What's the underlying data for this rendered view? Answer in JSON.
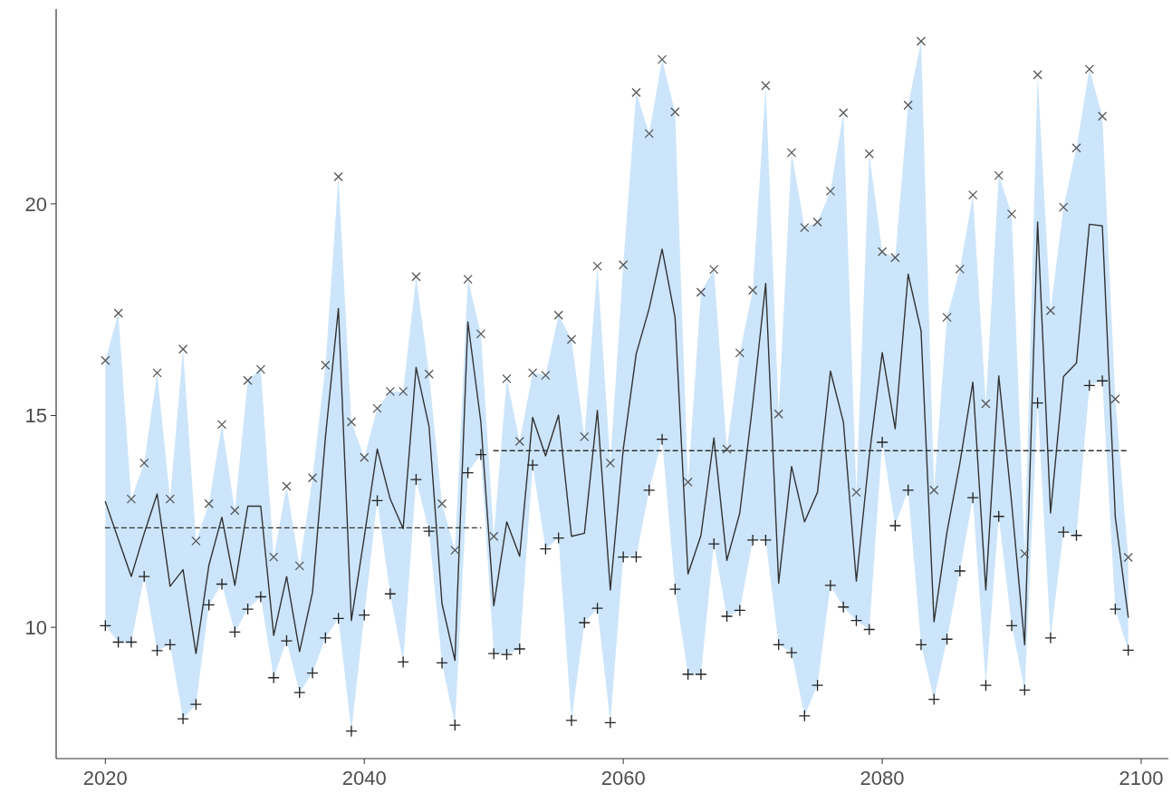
{
  "chart_data": {
    "type": "line",
    "x": [
      2020,
      2021,
      2022,
      2023,
      2024,
      2025,
      2026,
      2027,
      2028,
      2029,
      2030,
      2031,
      2032,
      2033,
      2034,
      2035,
      2036,
      2037,
      2038,
      2039,
      2040,
      2041,
      2042,
      2043,
      2044,
      2045,
      2046,
      2047,
      2048,
      2049,
      2050,
      2051,
      2052,
      2053,
      2054,
      2055,
      2056,
      2057,
      2058,
      2059,
      2060,
      2061,
      2062,
      2063,
      2064,
      2065,
      2066,
      2067,
      2068,
      2069,
      2070,
      2071,
      2072,
      2073,
      2074,
      2075,
      2076,
      2077,
      2078,
      2079,
      2080,
      2081,
      2082,
      2083,
      2084,
      2085,
      2086,
      2087,
      2088,
      2089,
      2090,
      2091,
      2092,
      2093,
      2094,
      2095,
      2096,
      2097,
      2098,
      2099
    ],
    "series": [
      {
        "color": "#333333",
        "line_style": "solid",
        "marker": "none",
        "values": [
          12.97,
          12.08,
          11.2,
          12.22,
          13.15,
          10.97,
          11.36,
          9.38,
          11.47,
          12.6,
          10.99,
          12.86,
          12.86,
          9.81,
          11.2,
          9.43,
          10.83,
          14.5,
          17.53,
          10.16,
          12.14,
          14.21,
          13.03,
          12.33,
          16.14,
          14.74,
          10.56,
          9.22,
          17.21,
          14.85,
          10.51,
          12.49,
          11.68,
          14.96,
          14.05,
          15.01,
          12.15,
          12.22,
          15.12,
          10.88,
          14.21,
          16.46,
          17.53,
          18.93,
          17.32,
          11.26,
          12.17,
          14.47,
          11.58,
          12.7,
          15.28,
          18.12,
          11.04,
          13.8,
          12.49,
          13.19,
          16.05,
          14.85,
          11.09,
          14.05,
          16.49,
          14.69,
          18.34,
          17.0,
          10.13,
          12.25,
          13.88,
          15.79,
          10.88,
          15.94,
          12.92,
          9.59,
          19.57,
          12.7,
          15.92,
          16.24,
          19.52,
          19.48,
          12.6,
          10.24
        ],
        "lower": [
          10.04,
          9.65,
          9.65,
          11.2,
          9.45,
          9.59,
          7.84,
          8.18,
          10.53,
          11.02,
          9.89,
          10.43,
          10.72,
          8.81,
          9.68,
          8.46,
          8.92,
          9.75,
          10.21,
          7.55,
          10.29,
          12.99,
          10.79,
          9.18,
          13.49,
          12.27,
          9.16,
          7.69,
          13.65,
          14.08,
          9.38,
          9.36,
          9.49,
          13.83,
          11.85,
          12.11,
          7.8,
          10.11,
          10.45,
          7.75,
          11.66,
          11.66,
          13.24,
          14.44,
          10.9,
          8.89,
          8.89,
          11.97,
          10.26,
          10.4,
          12.06,
          12.06,
          9.59,
          9.4,
          7.91,
          8.63,
          10.99,
          10.48,
          10.16,
          9.95,
          14.37,
          12.4,
          13.24,
          9.59,
          8.3,
          9.72,
          11.33,
          13.06,
          8.63,
          12.62,
          10.04,
          8.52,
          15.3,
          9.75,
          12.25,
          12.17,
          15.71,
          15.82,
          10.43,
          9.46
        ],
        "upper": [
          16.3,
          17.42,
          13.03,
          13.88,
          16.01,
          13.03,
          16.57,
          12.04,
          12.92,
          14.79,
          12.76,
          15.83,
          16.09,
          11.66,
          13.33,
          11.45,
          13.53,
          16.19,
          20.64,
          14.85,
          14.01,
          15.17,
          15.57,
          15.57,
          18.28,
          15.98,
          12.92,
          11.82,
          18.22,
          16.93,
          12.15,
          15.87,
          14.39,
          16.01,
          15.95,
          17.37,
          16.8,
          14.5,
          18.53,
          13.88,
          18.56,
          22.63,
          21.66,
          23.41,
          22.17,
          13.43,
          17.91,
          18.45,
          14.21,
          16.48,
          17.96,
          22.79,
          15.04,
          21.21,
          19.44,
          19.57,
          20.3,
          22.15,
          13.19,
          21.18,
          18.87,
          18.73,
          22.33,
          23.84,
          13.24,
          17.32,
          18.46,
          20.21,
          15.28,
          20.67,
          19.76,
          11.74,
          23.05,
          17.48,
          19.92,
          21.32,
          23.18,
          22.07,
          15.39,
          11.65
        ]
      },
      {
        "type": "scatter",
        "color": "#555555",
        "marker": "x",
        "values": [
          16.3,
          17.42,
          13.03,
          13.88,
          16.01,
          13.03,
          16.57,
          12.04,
          12.92,
          14.79,
          12.76,
          15.83,
          16.09,
          11.66,
          13.33,
          11.45,
          13.53,
          16.19,
          20.64,
          14.85,
          14.01,
          15.17,
          15.57,
          15.57,
          18.28,
          15.98,
          12.92,
          11.82,
          18.22,
          16.93,
          12.15,
          15.87,
          14.39,
          16.01,
          15.95,
          17.37,
          16.8,
          14.5,
          18.53,
          13.88,
          18.56,
          22.63,
          21.66,
          23.41,
          22.17,
          13.43,
          17.91,
          18.45,
          14.21,
          16.48,
          17.96,
          22.79,
          15.04,
          21.21,
          19.44,
          19.57,
          20.3,
          22.15,
          13.19,
          21.18,
          18.87,
          18.73,
          22.33,
          23.84,
          13.24,
          17.32,
          18.46,
          20.21,
          15.28,
          20.67,
          19.76,
          11.74,
          23.05,
          17.48,
          19.92,
          21.32,
          23.18,
          22.07,
          15.39,
          11.65
        ]
      },
      {
        "type": "scatter",
        "color": "#222222",
        "marker": "cross",
        "values": [
          10.04,
          9.65,
          9.65,
          11.2,
          9.45,
          9.59,
          7.84,
          8.18,
          10.53,
          11.02,
          9.89,
          10.43,
          10.72,
          8.81,
          9.68,
          8.46,
          8.92,
          9.75,
          10.21,
          7.55,
          10.29,
          12.99,
          10.79,
          9.18,
          13.49,
          12.27,
          9.16,
          7.69,
          13.65,
          14.08,
          9.38,
          9.36,
          9.49,
          13.83,
          11.85,
          12.11,
          7.8,
          10.11,
          10.45,
          7.75,
          11.66,
          11.66,
          13.24,
          14.44,
          10.9,
          8.89,
          8.89,
          11.97,
          10.26,
          10.4,
          12.06,
          12.06,
          9.59,
          9.4,
          7.91,
          8.63,
          10.99,
          10.48,
          10.16,
          9.95,
          14.37,
          12.4,
          13.24,
          9.59,
          8.3,
          9.72,
          11.33,
          13.06,
          8.63,
          12.62,
          10.04,
          8.52,
          15.3,
          9.75,
          12.25,
          12.17,
          15.71,
          15.82,
          10.43,
          9.46
        ]
      },
      {
        "color": "#333333",
        "line_style": "dashed",
        "marker": "none",
        "x": [
          2020,
          2049
        ],
        "values": [
          12.35,
          12.35
        ]
      },
      {
        "color": "#333333",
        "line_style": "dashed",
        "marker": "none",
        "x": [
          2050,
          2099
        ],
        "values": [
          14.17,
          14.17
        ]
      }
    ],
    "xlim": [
      2016.2,
      2102.1
    ],
    "ylim": [
      6.9,
      24.6
    ],
    "xticks": [
      2020,
      2040,
      2060,
      2080,
      2100
    ],
    "yticks": [
      10,
      15,
      20
    ],
    "grid": false
  }
}
